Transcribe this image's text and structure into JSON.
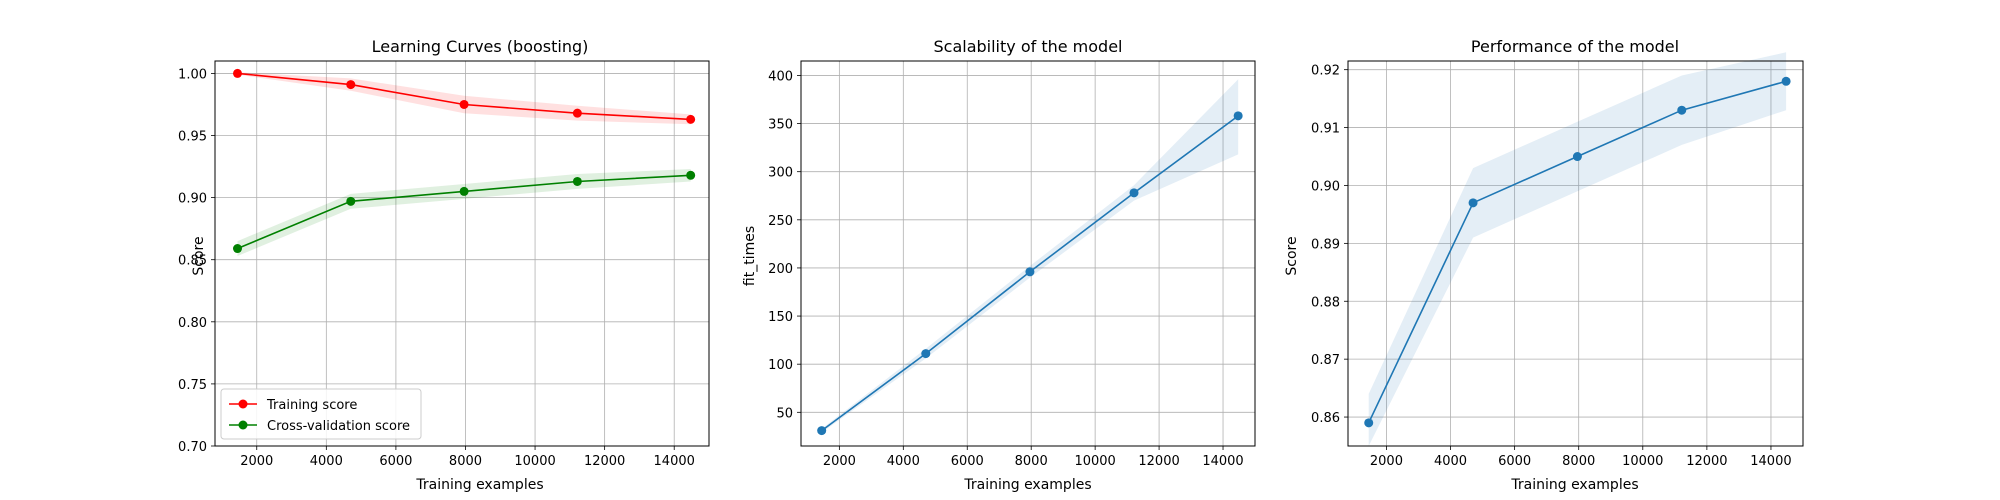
{
  "chart_data": [
    {
      "type": "line",
      "title": "Learning Curves (boosting)",
      "xlabel": "Training examples",
      "ylabel": "Score",
      "xlim": [
        800,
        15000
      ],
      "ylim": [
        0.7,
        1.01
      ],
      "xticks": [
        2000,
        4000,
        6000,
        8000,
        10000,
        12000,
        14000
      ],
      "yticks": [
        0.7,
        0.75,
        0.8,
        0.85,
        0.9,
        0.95,
        1.0
      ],
      "ytick_decimals": 2,
      "grid": true,
      "legend": "lower-left",
      "x": [
        1447,
        4703,
        7960,
        11216,
        14473
      ],
      "series": [
        {
          "name": "Training score",
          "color": "#ff0000",
          "values": [
            1.0,
            0.991,
            0.975,
            0.968,
            0.963
          ],
          "band_low": [
            0.999,
            0.986,
            0.968,
            0.962,
            0.959
          ],
          "band_high": [
            1.001,
            0.996,
            0.982,
            0.974,
            0.967
          ]
        },
        {
          "name": "Cross-validation score",
          "color": "#008000",
          "values": [
            0.859,
            0.897,
            0.905,
            0.913,
            0.918
          ],
          "band_low": [
            0.853,
            0.891,
            0.899,
            0.907,
            0.913
          ],
          "band_high": [
            0.865,
            0.903,
            0.911,
            0.919,
            0.923
          ]
        }
      ]
    },
    {
      "type": "line",
      "title": "Scalability of the model",
      "xlabel": "Training examples",
      "ylabel": "fit_times",
      "xlim": [
        800,
        15000
      ],
      "ylim": [
        15,
        415
      ],
      "xticks": [
        2000,
        4000,
        6000,
        8000,
        10000,
        12000,
        14000
      ],
      "yticks": [
        50,
        100,
        150,
        200,
        250,
        300,
        350,
        400
      ],
      "ytick_decimals": 0,
      "grid": true,
      "x": [
        1447,
        4703,
        7960,
        11216,
        14473
      ],
      "series": [
        {
          "color": "#1f77b4",
          "values": [
            31,
            111,
            196,
            278,
            358
          ],
          "band_low": [
            29,
            106,
            190,
            270,
            318
          ],
          "band_high": [
            33,
            116,
            202,
            286,
            396
          ]
        }
      ]
    },
    {
      "type": "line",
      "title": "Performance of the model",
      "xlabel": "Training examples",
      "ylabel": "Score",
      "xlim": [
        800,
        15000
      ],
      "ylim": [
        0.855,
        0.9215
      ],
      "xticks": [
        2000,
        4000,
        6000,
        8000,
        10000,
        12000,
        14000
      ],
      "yticks": [
        0.86,
        0.87,
        0.88,
        0.89,
        0.9,
        0.91,
        0.92
      ],
      "ytick_decimals": 2,
      "grid": true,
      "x": [
        31,
        111,
        196,
        278,
        358
      ],
      "x_display": [
        1447,
        4703,
        7960,
        11216,
        14473
      ],
      "series": [
        {
          "color": "#1f77b4",
          "values": [
            0.859,
            0.897,
            0.905,
            0.913,
            0.918
          ],
          "band_low": [
            0.855,
            0.891,
            0.899,
            0.907,
            0.913
          ],
          "band_high": [
            0.864,
            0.903,
            0.911,
            0.919,
            0.923
          ]
        }
      ]
    }
  ]
}
